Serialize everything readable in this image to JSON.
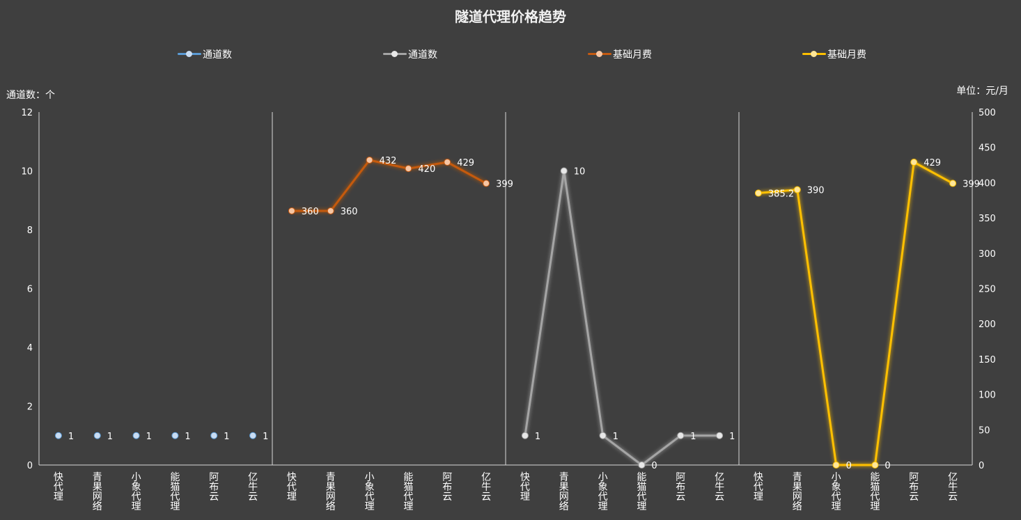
{
  "chart_data": {
    "type": "line",
    "title": "隧道代理价格趋势",
    "left_axis_unit": "通道数：个",
    "right_axis_unit": "单位：元/月",
    "left_axis": {
      "ylim": [
        0,
        12
      ],
      "ticks": [
        0,
        2,
        4,
        6,
        8,
        10,
        12
      ]
    },
    "right_axis": {
      "ylim": [
        0,
        500
      ],
      "ticks": [
        0,
        50,
        100,
        150,
        200,
        250,
        300,
        350,
        400,
        450,
        500
      ]
    },
    "grid": false,
    "legend_position": "top",
    "x_tick_labels": [
      "快代理",
      "青果网络",
      "小象代理",
      "能猫代理",
      "阿布云",
      "亿牛云"
    ],
    "series": [
      {
        "name": "通道数",
        "axis": "left",
        "panel": 0,
        "color": "#5b9bd5",
        "marker_color": "#c9dcf2",
        "values": [
          1,
          1,
          1,
          1,
          1,
          1
        ],
        "data_labels": [
          "1",
          "1",
          "1",
          "1",
          "1",
          "1"
        ]
      },
      {
        "name": "基础月费",
        "axis": "right",
        "panel": 1,
        "color": "#c55a11",
        "marker_color": "#f6c6a4",
        "values": [
          360,
          360,
          432,
          420,
          429,
          399
        ],
        "data_labels": [
          "360",
          "360",
          "432",
          "420",
          "429",
          "399"
        ]
      },
      {
        "name": "通道数",
        "axis": "left",
        "panel": 2,
        "color": "#a5a5a5",
        "marker_color": "#e8e8e8",
        "values": [
          1,
          10,
          1,
          0,
          1,
          1
        ],
        "data_labels": [
          "1",
          "10",
          "1",
          "0",
          "1",
          "1"
        ]
      },
      {
        "name": "基础月费",
        "axis": "right",
        "panel": 3,
        "color": "#ffc000",
        "marker_color": "#ffe699",
        "values": [
          385.2,
          390,
          0,
          0,
          429,
          399
        ],
        "data_labels": [
          "385.2",
          "390",
          "0",
          "0",
          "429",
          "399"
        ]
      }
    ]
  }
}
